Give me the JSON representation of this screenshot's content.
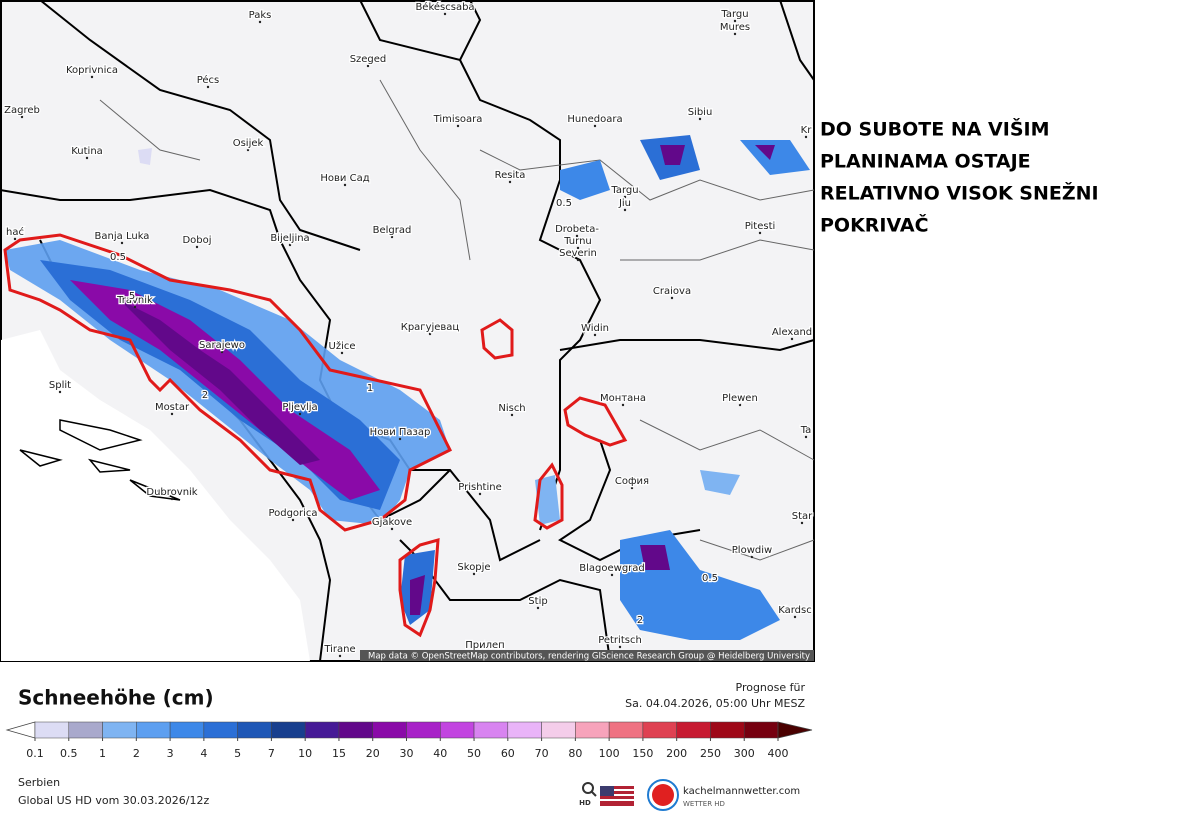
{
  "annotation": {
    "lines": [
      "DO SUBOTE NA VIŠIM",
      "PLANINAMA OSTAJE",
      "RELATIVNO VISOK SNEŽNI",
      "POKRIVAČ"
    ]
  },
  "map": {
    "cities": [
      "Paks",
      "Békéscsaba",
      "Targu",
      "Mures",
      "Koprivnica",
      "Pécs",
      "Szeged",
      "Zagreb",
      "Osijek",
      "Timisoara",
      "Hunedoara",
      "Sibiu",
      "Kr",
      "Kutina",
      "Нови Сад",
      "Resita",
      "Targu",
      "Jiu",
      "Banja Luka",
      "Doboj",
      "Bijeljina",
      "Belgrad",
      "Drobeta-",
      "Turnu",
      "Severin",
      "Pitesti",
      "hać",
      "Travnik",
      "Craiova",
      "Крагујевац",
      "Widin",
      "Sarajewo",
      "Užice",
      "Alexand",
      "Split",
      "Mostar",
      "Pljevlja",
      "Нови Пазар",
      "Nisch",
      "Монтана",
      "Plewen",
      "Ta",
      "София",
      "Prishtine",
      "Dubrovnik",
      "Podgorica",
      "Gjakove",
      "Star",
      "Skopje",
      "Blagoewgrad",
      "Plowdiw",
      "Kardsc",
      "Stip",
      "Tirane",
      "Прилеп",
      "Petritsch"
    ],
    "contour_labels": [
      "0.5",
      "0.5",
      "5",
      "1",
      "2",
      "0.5",
      "2"
    ],
    "attribution": "Map data © OpenStreetMap contributors, rendering GIScience Research Group @ Heidelberg University"
  },
  "legend": {
    "title": "Schneehöhe (cm)",
    "levels": [
      0.1,
      0.5,
      1,
      2,
      3,
      4,
      5,
      7,
      10,
      15,
      20,
      30,
      40,
      50,
      60,
      70,
      80,
      100,
      150,
      200,
      250,
      300,
      400
    ],
    "colors": [
      "#dcdcf4",
      "#a9a9cc",
      "#7fb4f2",
      "#5d9ff0",
      "#3d88e8",
      "#2b6fd6",
      "#1f57b6",
      "#183f8e",
      "#461a96",
      "#62088a",
      "#8a0aa8",
      "#a822c8",
      "#c245e0",
      "#d884f0",
      "#e9b4f8",
      "#f4cdea",
      "#f7a3bb",
      "#ef7282",
      "#df4152",
      "#c71a31",
      "#9e0818",
      "#760010"
    ],
    "under_color": "#ffffff",
    "over_color": "#4a0000"
  },
  "forecast": {
    "label": "Prognose für",
    "time": "Sa. 04.04.2026, 05:00 Uhr MESZ"
  },
  "footer": {
    "region": "Serbien",
    "model": "Global US HD vom  30.03.2026/12z"
  },
  "brand": {
    "hd": "HD",
    "name": "kachelmannwetter.com",
    "sub": "WETTER HD"
  }
}
